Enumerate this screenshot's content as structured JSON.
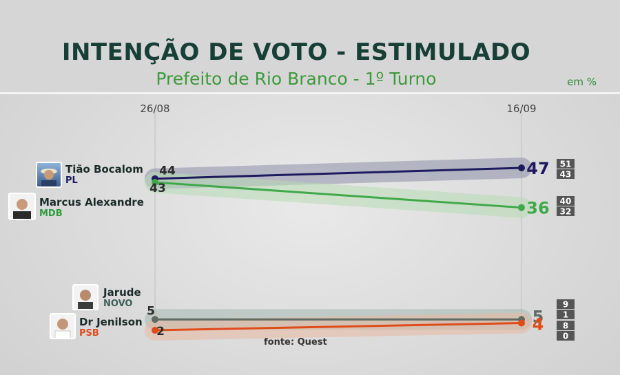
{
  "header": {
    "title": "INTENÇÃO DE VOTO - ESTIMULADO",
    "subtitle": "Prefeito de Rio Branco - 1º Turno",
    "unit": "em %"
  },
  "source": "fonte: Quest",
  "colors": {
    "Tião Bocalom": "#1d1a5e",
    "Marcus Alexandre": "#3fa94a",
    "Jarude": "#5f6a63",
    "Dr Jenilson": "#e04b1a"
  },
  "candidates": [
    {
      "name": "Tião Bocalom",
      "party": "PL",
      "avatar_icon": "candidate-photo-icon"
    },
    {
      "name": "Marcus Alexandre",
      "party": "MDB",
      "avatar_icon": "candidate-photo-icon"
    },
    {
      "name": "Jarude",
      "party": "NOVO",
      "avatar_icon": "candidate-photo-icon"
    },
    {
      "name": "Dr Jenilson",
      "party": "PSB",
      "avatar_icon": "candidate-photo-icon"
    }
  ],
  "chart_data": {
    "type": "line",
    "title": "INTENÇÃO DE VOTO - ESTIMULADO",
    "subtitle": "Prefeito de Rio Branco - 1º Turno",
    "unit": "em %",
    "x": [
      "26/08",
      "16/09"
    ],
    "ylim": [
      0,
      50
    ],
    "grid": false,
    "series": [
      {
        "name": "Tião Bocalom",
        "party": "PL",
        "values": [
          44,
          47
        ],
        "range": {
          "max": 51,
          "min": 43
        }
      },
      {
        "name": "Marcus Alexandre",
        "party": "MDB",
        "values": [
          43,
          36
        ],
        "range": {
          "max": 40,
          "min": 32
        }
      },
      {
        "name": "Jarude",
        "party": "NOVO",
        "values": [
          5,
          5
        ],
        "range": {
          "max": 9,
          "min": 1
        }
      },
      {
        "name": "Dr Jenilson",
        "party": "PSB",
        "values": [
          2,
          4
        ],
        "range": {
          "max": 8,
          "min": 0
        }
      }
    ]
  }
}
